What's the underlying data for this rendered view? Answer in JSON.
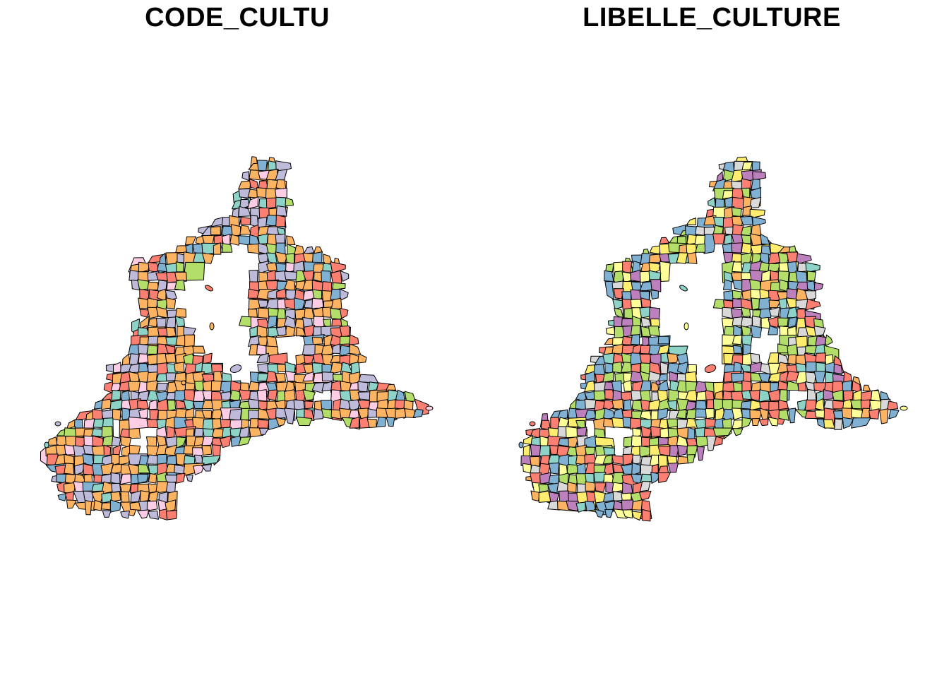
{
  "panels": [
    {
      "title": "CODE_CULTU",
      "palette": [
        "#FDB462",
        "#FDB462",
        "#FDB462",
        "#FDB462",
        "#FB8072",
        "#FB8072",
        "#8DD3C7",
        "#BEBADA",
        "#BEBADA",
        "#B3DE69",
        "#FCCDE5",
        "#80B1D3"
      ]
    },
    {
      "title": "LIBELLE_CULTURE",
      "palette": [
        "#FB8072",
        "#FB8072",
        "#FFFF99",
        "#FFED6F",
        "#80B1D3",
        "#80B1D3",
        "#B3DE69",
        "#B3DE69",
        "#BC80BD",
        "#FDB462",
        "#D9D9D9",
        "#8DD3C7"
      ]
    }
  ]
}
